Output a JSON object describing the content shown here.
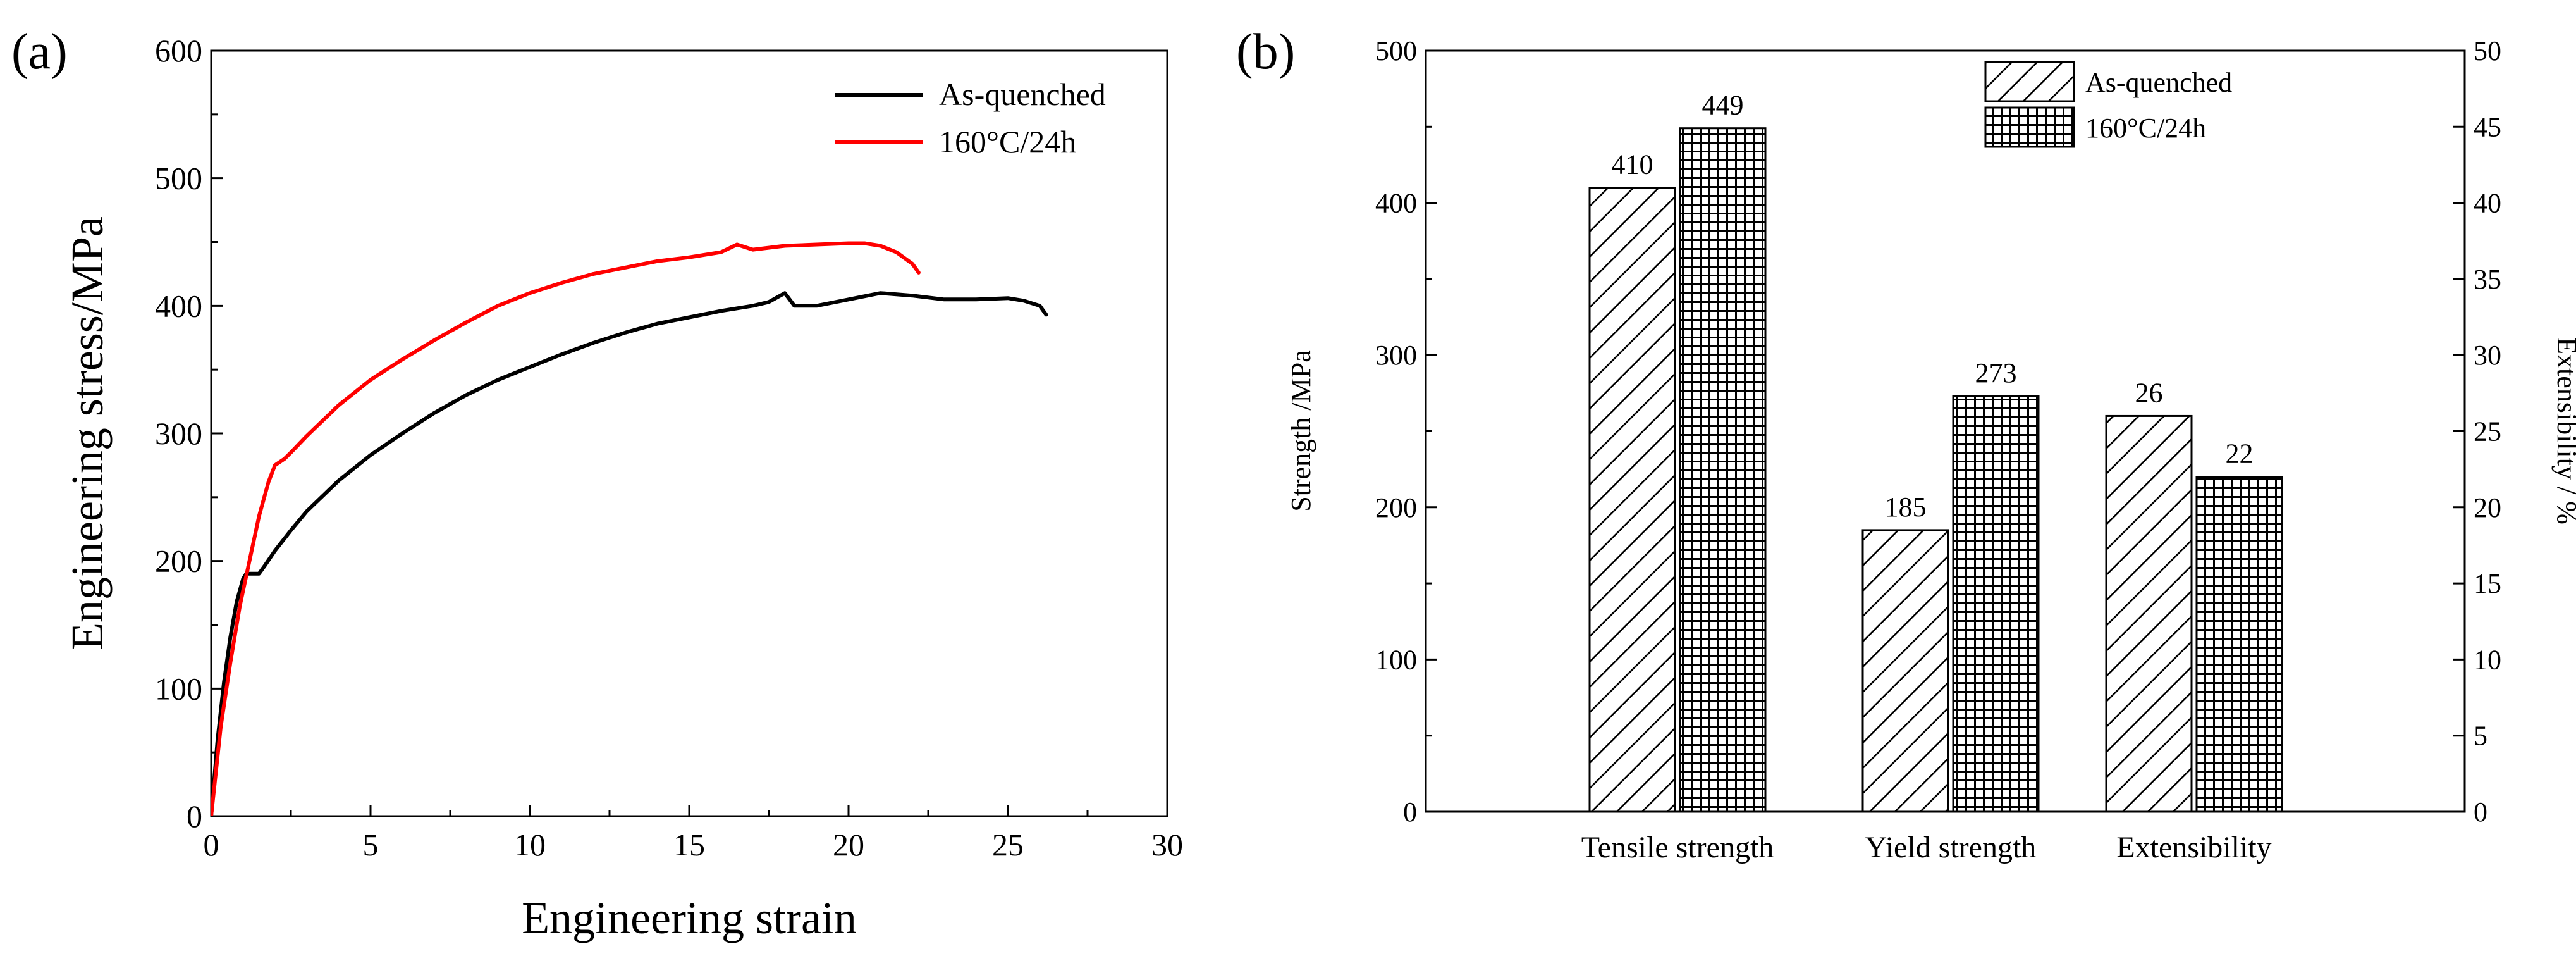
{
  "colors": {
    "as_quenched": "#000000",
    "aged": "#ff0000"
  },
  "chart_data": [
    {
      "type": "line",
      "panel_label": "(a)",
      "xlabel": "Engineering strain",
      "ylabel": "Engineering stress/MPa",
      "xlim": [
        0,
        30
      ],
      "ylim": [
        0,
        600
      ],
      "xticks": [
        0,
        5,
        10,
        15,
        20,
        25,
        30
      ],
      "yticks": [
        0,
        100,
        200,
        300,
        400,
        500,
        600
      ],
      "xtick_labels": [
        "0",
        "5",
        "10",
        "15",
        "20",
        "25",
        "30"
      ],
      "ytick_labels": [
        "0",
        "100",
        "200",
        "300",
        "400",
        "500",
        "600"
      ],
      "legend_position": "top-right",
      "series": [
        {
          "name": "As-quenched",
          "color": "#000000",
          "x": [
            0,
            0.2,
            0.4,
            0.6,
            0.8,
            1.0,
            1.1,
            1.3,
            1.5,
            1.7,
            2.0,
            2.5,
            3,
            4,
            5,
            6,
            7,
            8,
            9,
            10,
            11,
            12,
            13,
            14,
            15,
            16,
            17,
            17.5,
            18,
            18.3,
            18.6,
            19,
            20,
            21,
            22,
            23,
            24,
            25,
            25.5,
            26,
            26.2
          ],
          "y": [
            0,
            60,
            105,
            140,
            168,
            186,
            190,
            190,
            190,
            197,
            208,
            224,
            239,
            263,
            283,
            300,
            316,
            330,
            342,
            352,
            362,
            371,
            379,
            386,
            391,
            396,
            400,
            403,
            410,
            400,
            400,
            400,
            405,
            410,
            408,
            405,
            405,
            406,
            404,
            400,
            393
          ]
        },
        {
          "name": "160°C/24h",
          "color": "#ff0000",
          "x": [
            0,
            0.3,
            0.6,
            0.9,
            1.2,
            1.5,
            1.8,
            2.0,
            2.3,
            2.5,
            3,
            4,
            5,
            6,
            7,
            8,
            9,
            10,
            11,
            12,
            13,
            14,
            15,
            16,
            16.5,
            17,
            18,
            19,
            20,
            20.5,
            21,
            21.5,
            22,
            22.2
          ],
          "y": [
            0,
            70,
            120,
            165,
            200,
            235,
            262,
            275,
            280,
            285,
            298,
            322,
            342,
            358,
            373,
            387,
            400,
            410,
            418,
            425,
            430,
            435,
            438,
            442,
            448,
            444,
            447,
            448,
            449,
            449,
            447,
            442,
            433,
            426
          ]
        }
      ]
    },
    {
      "type": "bar",
      "panel_label": "(b)",
      "categories": [
        "Tensile strength",
        "Yield strength",
        "Extensibility"
      ],
      "ylabel": "Strength /MPa",
      "y2label": "Extensibility / %",
      "ylim": [
        0,
        500
      ],
      "y2lim": [
        0,
        50
      ],
      "yticks": [
        0,
        100,
        200,
        300,
        400,
        500
      ],
      "ytick_labels": [
        "0",
        "100",
        "200",
        "300",
        "400",
        "500"
      ],
      "y2ticks": [
        0,
        5,
        10,
        15,
        20,
        25,
        30,
        35,
        40,
        45,
        50
      ],
      "y2tick_labels": [
        "0",
        "5",
        "10",
        "15",
        "20",
        "25",
        "30",
        "35",
        "40",
        "45",
        "50"
      ],
      "legend_position": "top-center",
      "series": [
        {
          "name": "As-quenched",
          "pattern": "diagonal-hatch",
          "values": [
            410,
            185,
            26
          ],
          "axes": [
            "left",
            "left",
            "right"
          ],
          "labels": [
            "410",
            "185",
            "26"
          ]
        },
        {
          "name": "160°C/24h",
          "pattern": "grid-hatch",
          "values": [
            449,
            273,
            22
          ],
          "axes": [
            "left",
            "left",
            "right"
          ],
          "labels": [
            "449",
            "273",
            "22"
          ]
        }
      ]
    }
  ]
}
